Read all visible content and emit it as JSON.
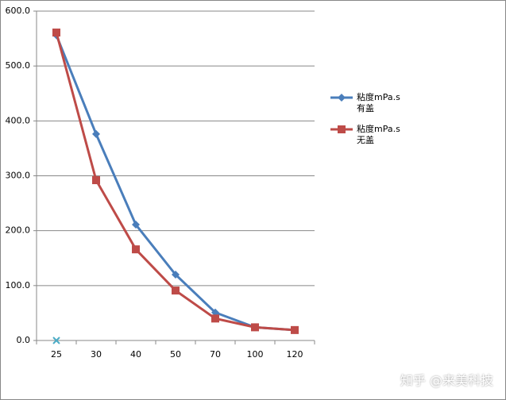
{
  "chart_data": {
    "type": "line",
    "categories": [
      "25",
      "30",
      "40",
      "50",
      "70",
      "100",
      "120"
    ],
    "series": [
      {
        "name": "粘度mPa.s\n有盖",
        "color": "#4a7ebb",
        "marker": "diamond",
        "values": [
          556,
          376,
          211,
          120,
          51,
          24,
          19
        ]
      },
      {
        "name": "粘度mPa.s\n无盖",
        "color": "#be4b48",
        "marker": "square",
        "values": [
          561,
          292,
          166,
          91,
          40,
          24,
          19
        ]
      },
      {
        "color": "#4bacc6",
        "marker": "x",
        "values": [
          0,
          null,
          null,
          null,
          null,
          null,
          null
        ]
      }
    ],
    "ylim": [
      0,
      600
    ],
    "yticks": [
      {
        "value": 0,
        "label": "0.0"
      },
      {
        "value": 100,
        "label": "100.0"
      },
      {
        "value": 200,
        "label": "200.0"
      },
      {
        "value": 300,
        "label": "300.0"
      },
      {
        "value": 400,
        "label": "400.0"
      },
      {
        "value": 500,
        "label": "500.0"
      },
      {
        "value": 600,
        "label": "600.0"
      }
    ],
    "grid": true
  },
  "watermark": "知乎 @来美科技"
}
